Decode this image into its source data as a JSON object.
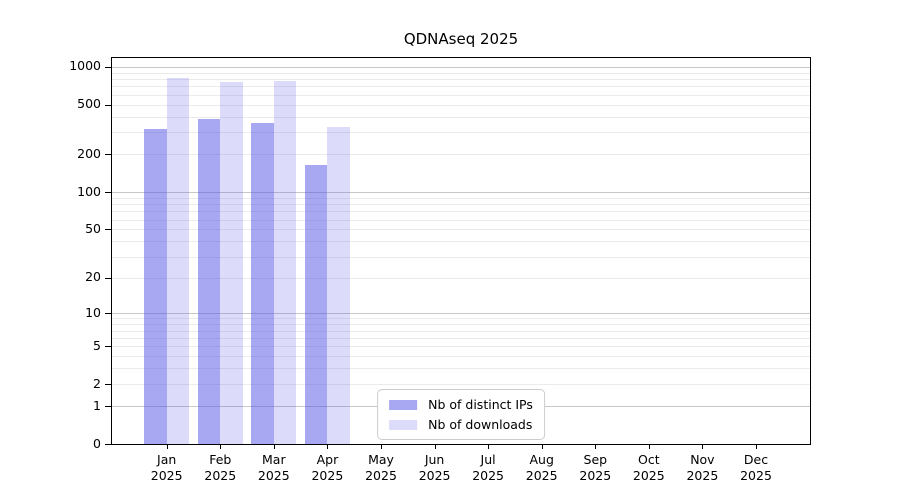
{
  "chart_data": {
    "type": "bar",
    "title": "QDNAseq 2025",
    "months": [
      "Jan",
      "Feb",
      "Mar",
      "Apr",
      "May",
      "Jun",
      "Jul",
      "Aug",
      "Sep",
      "Oct",
      "Nov",
      "Dec"
    ],
    "year": "2025",
    "series": [
      {
        "name": "Nb of distinct IPs",
        "color": "rgba(80,80,230,0.5)",
        "values": [
          318,
          381,
          356,
          164,
          0,
          0,
          0,
          0,
          0,
          0,
          0,
          0
        ]
      },
      {
        "name": "Nb of downloads",
        "color": "rgba(80,80,230,0.2)",
        "values": [
          810,
          762,
          771,
          333,
          0,
          0,
          0,
          0,
          0,
          0,
          0,
          0
        ]
      }
    ],
    "yticks": [
      0,
      1,
      2,
      5,
      10,
      20,
      50,
      100,
      200,
      500,
      1000
    ],
    "scale": "log10(1+x)",
    "ylim_top_value": 1170,
    "xlabel": "",
    "ylabel": "",
    "axis_color": "#000000",
    "grid": {
      "minor_color": "#ebebeb",
      "major_color": "#c8c8c8",
      "major_values": [
        1,
        10,
        100,
        1000
      ]
    },
    "legend": {
      "position": "lower center"
    }
  }
}
